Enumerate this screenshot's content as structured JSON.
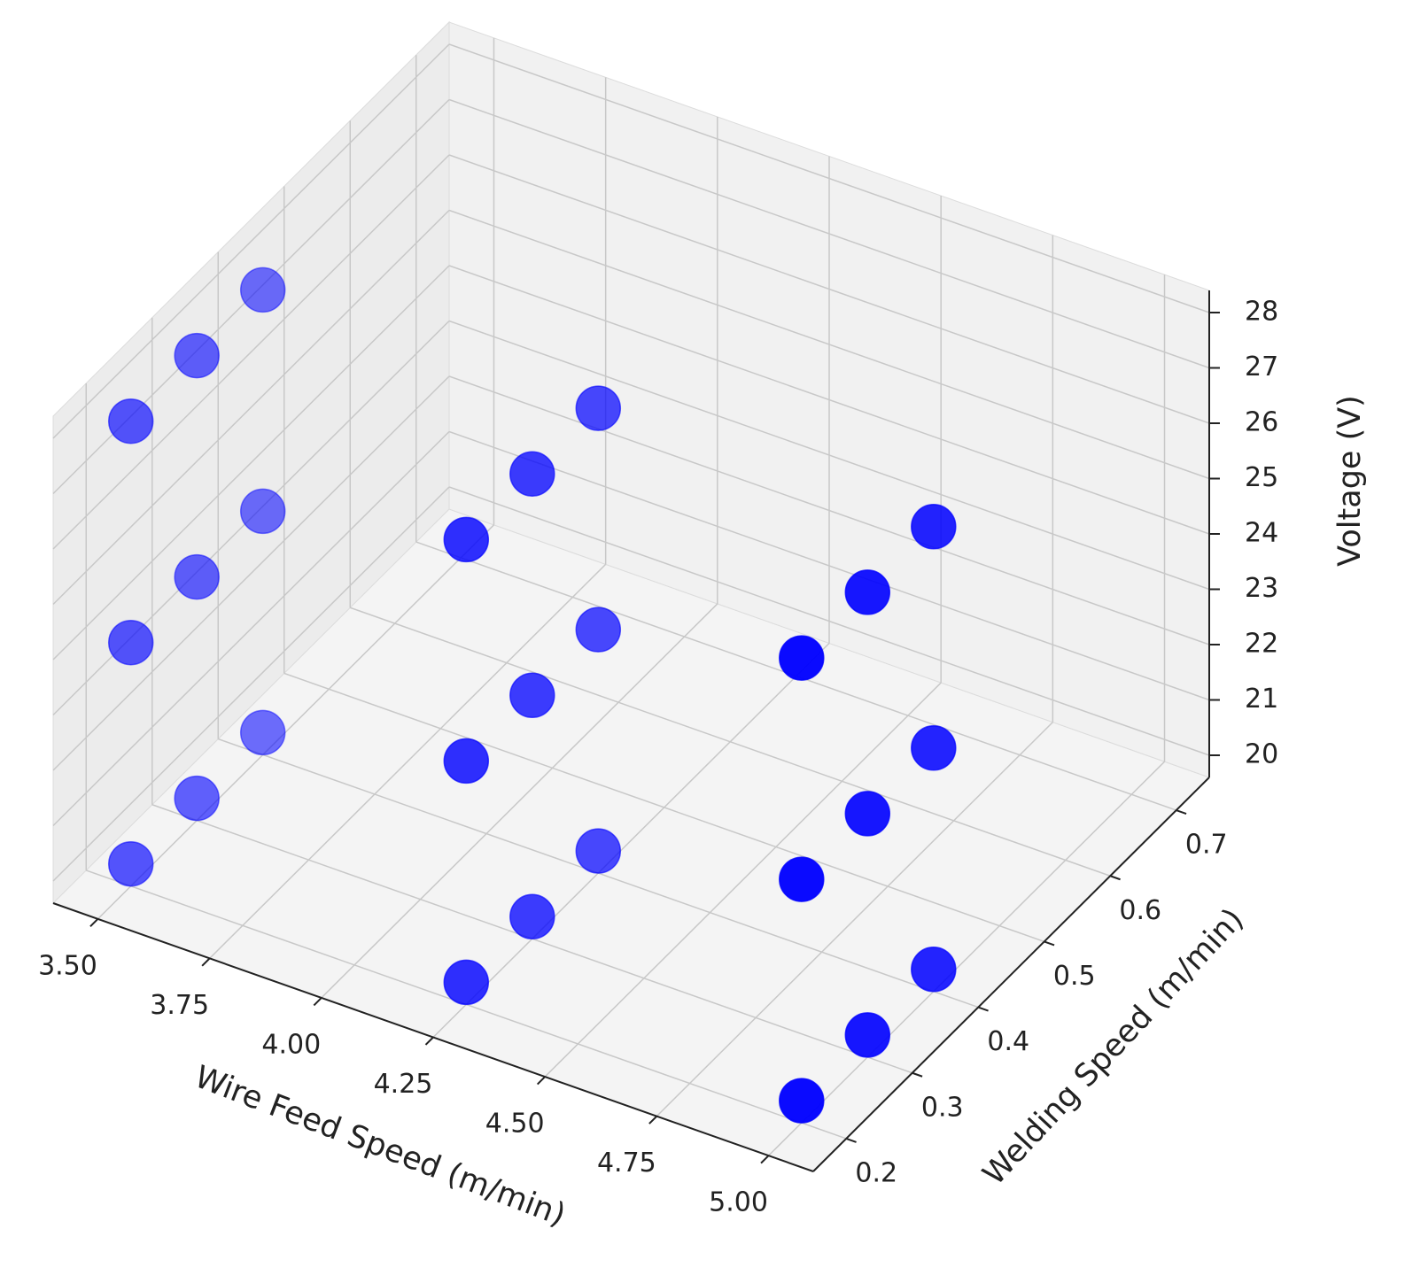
{
  "chart_data": {
    "type": "scatter",
    "projection": "3d",
    "xlabel": "Wire Feed Speed (m/min)",
    "ylabel": "Welding Speed (m/min)",
    "zlabel": "Voltage (V)",
    "x_ticks": [
      "3.50",
      "3.75",
      "4.00",
      "4.25",
      "4.50",
      "4.75",
      "5.00"
    ],
    "y_ticks": [
      "0.2",
      "0.3",
      "0.4",
      "0.5",
      "0.6",
      "0.7"
    ],
    "z_ticks": [
      "20",
      "21",
      "22",
      "23",
      "24",
      "25",
      "26",
      "27",
      "28"
    ],
    "xlim": [
      3.4,
      5.1
    ],
    "ylim": [
      0.15,
      0.75
    ],
    "zlim": [
      19.6,
      28.4
    ],
    "grid": true,
    "marker_color": "#0000ff",
    "points": [
      {
        "x": 3.5,
        "y": 0.2,
        "z": 20
      },
      {
        "x": 3.5,
        "y": 0.3,
        "z": 20
      },
      {
        "x": 3.5,
        "y": 0.4,
        "z": 20
      },
      {
        "x": 3.5,
        "y": 0.2,
        "z": 24
      },
      {
        "x": 3.5,
        "y": 0.3,
        "z": 24
      },
      {
        "x": 3.5,
        "y": 0.4,
        "z": 24
      },
      {
        "x": 3.5,
        "y": 0.2,
        "z": 28
      },
      {
        "x": 3.5,
        "y": 0.3,
        "z": 28
      },
      {
        "x": 3.5,
        "y": 0.4,
        "z": 28
      },
      {
        "x": 4.25,
        "y": 0.2,
        "z": 20
      },
      {
        "x": 4.25,
        "y": 0.3,
        "z": 20
      },
      {
        "x": 4.25,
        "y": 0.4,
        "z": 20
      },
      {
        "x": 4.25,
        "y": 0.2,
        "z": 24
      },
      {
        "x": 4.25,
        "y": 0.3,
        "z": 24
      },
      {
        "x": 4.25,
        "y": 0.4,
        "z": 24
      },
      {
        "x": 4.25,
        "y": 0.2,
        "z": 28
      },
      {
        "x": 4.25,
        "y": 0.3,
        "z": 28
      },
      {
        "x": 4.25,
        "y": 0.4,
        "z": 28
      },
      {
        "x": 5.0,
        "y": 0.2,
        "z": 20
      },
      {
        "x": 5.0,
        "y": 0.3,
        "z": 20
      },
      {
        "x": 5.0,
        "y": 0.4,
        "z": 20
      },
      {
        "x": 5.0,
        "y": 0.2,
        "z": 24
      },
      {
        "x": 5.0,
        "y": 0.3,
        "z": 24
      },
      {
        "x": 5.0,
        "y": 0.4,
        "z": 24
      },
      {
        "x": 5.0,
        "y": 0.2,
        "z": 28
      },
      {
        "x": 5.0,
        "y": 0.3,
        "z": 28
      },
      {
        "x": 5.0,
        "y": 0.4,
        "z": 28
      }
    ]
  }
}
